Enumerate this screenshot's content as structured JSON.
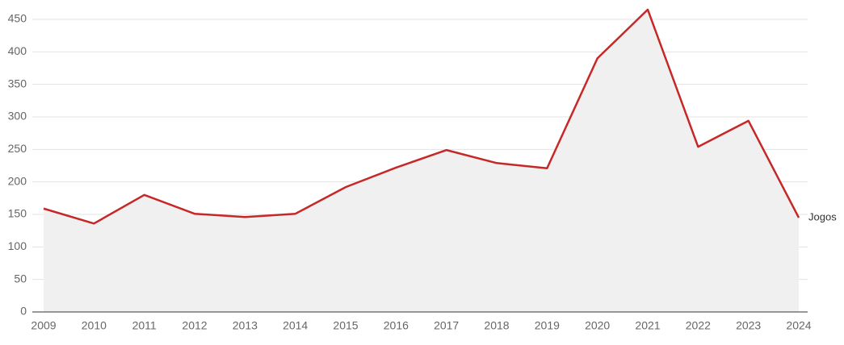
{
  "chart_data": {
    "type": "line",
    "x": [
      2009,
      2010,
      2011,
      2012,
      2013,
      2014,
      2015,
      2016,
      2017,
      2018,
      2019,
      2020,
      2021,
      2022,
      2023,
      2024
    ],
    "series": [
      {
        "name": "Jogos",
        "color": "#c62828",
        "values": [
          159,
          136,
          180,
          151,
          146,
          151,
          192,
          222,
          249,
          229,
          221,
          390,
          465,
          254,
          294,
          145
        ]
      }
    ],
    "area_color": "#f0f0f0",
    "ylim": [
      0,
      450
    ],
    "yticks": [
      0,
      50,
      100,
      150,
      200,
      250,
      300,
      350,
      400,
      450
    ],
    "grid": true
  }
}
